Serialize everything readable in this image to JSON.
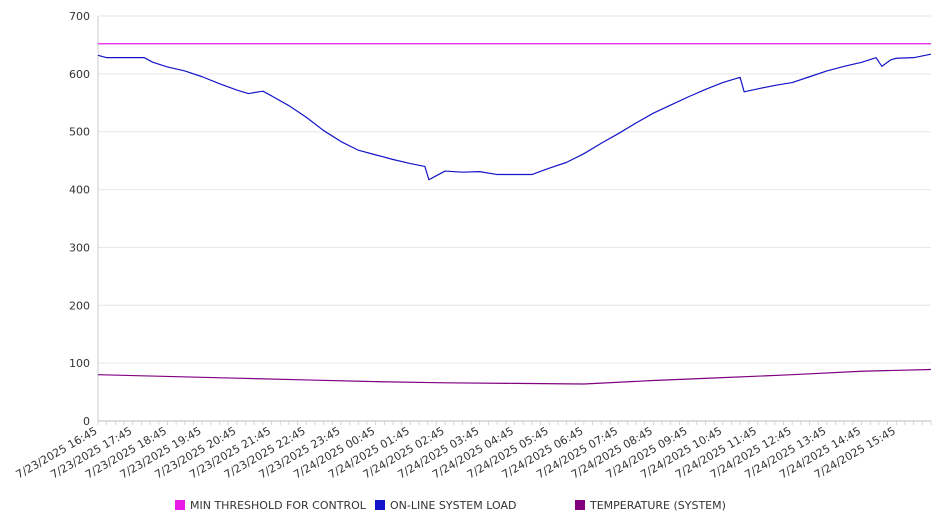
{
  "chart_data": {
    "type": "line",
    "ylim": [
      0,
      700
    ],
    "y_ticks": [
      0,
      100,
      200,
      300,
      400,
      500,
      600,
      700
    ],
    "grid": "horizontal",
    "legend_position": "bottom",
    "x_tick_labels": [
      "7/23/2025 16:45",
      "7/23/2025 17:45",
      "7/23/2025 18:45",
      "7/23/2025 19:45",
      "7/23/2025 20:45",
      "7/23/2025 21:45",
      "7/23/2025 22:45",
      "7/23/2025 23:45",
      "7/24/2025 00:45",
      "7/24/2025 01:45",
      "7/24/2025 02:45",
      "7/24/2025 03:45",
      "7/24/2025 04:45",
      "7/24/2025 05:45",
      "7/24/2025 06:45",
      "7/24/2025 07:45",
      "7/24/2025 08:45",
      "7/24/2025 09:45",
      "7/24/2025 10:45",
      "7/24/2025 11:45",
      "7/24/2025 12:45",
      "7/24/2025 13:45",
      "7/24/2025 14:45",
      "7/24/2025 15:45"
    ],
    "x_range": [
      "7/23/2025 16:45",
      "7/24/2025 16:45"
    ],
    "series": [
      {
        "name": "MIN THRESHOLD FOR CONTROL",
        "color": "#e81ae8",
        "points": [
          [
            "7/23/2025 16:45",
            652
          ],
          [
            "7/24/2025 16:45",
            652
          ]
        ]
      },
      {
        "name": "ON-LINE SYSTEM LOAD",
        "color": "#1414c8",
        "points": [
          [
            "7/23/2025 16:45",
            632
          ],
          [
            "7/23/2025 17:00",
            628
          ],
          [
            "7/23/2025 17:45",
            628
          ],
          [
            "7/23/2025 18:05",
            628
          ],
          [
            "7/23/2025 18:20",
            620
          ],
          [
            "7/23/2025 18:45",
            612
          ],
          [
            "7/23/2025 19:15",
            605
          ],
          [
            "7/23/2025 19:45",
            595
          ],
          [
            "7/23/2025 20:15",
            583
          ],
          [
            "7/23/2025 20:45",
            572
          ],
          [
            "7/23/2025 21:05",
            566
          ],
          [
            "7/23/2025 21:30",
            570
          ],
          [
            "7/23/2025 21:45",
            562
          ],
          [
            "7/23/2025 22:15",
            545
          ],
          [
            "7/23/2025 22:45",
            525
          ],
          [
            "7/23/2025 23:15",
            502
          ],
          [
            "7/23/2025 23:45",
            483
          ],
          [
            "7/24/2025 00:15",
            468
          ],
          [
            "7/24/2025 00:45",
            460
          ],
          [
            "7/24/2025 01:15",
            452
          ],
          [
            "7/24/2025 01:45",
            445
          ],
          [
            "7/24/2025 02:10",
            440
          ],
          [
            "7/24/2025 02:17",
            417
          ],
          [
            "7/24/2025 02:30",
            424
          ],
          [
            "7/24/2025 02:45",
            432
          ],
          [
            "7/24/2025 03:15",
            430
          ],
          [
            "7/24/2025 03:45",
            431
          ],
          [
            "7/24/2025 04:15",
            426
          ],
          [
            "7/24/2025 04:45",
            426
          ],
          [
            "7/24/2025 05:15",
            426
          ],
          [
            "7/24/2025 05:45",
            437
          ],
          [
            "7/24/2025 06:15",
            447
          ],
          [
            "7/24/2025 06:45",
            462
          ],
          [
            "7/24/2025 07:15",
            480
          ],
          [
            "7/24/2025 07:45",
            497
          ],
          [
            "7/24/2025 08:15",
            515
          ],
          [
            "7/24/2025 08:45",
            532
          ],
          [
            "7/24/2025 09:15",
            546
          ],
          [
            "7/24/2025 09:45",
            560
          ],
          [
            "7/24/2025 10:15",
            573
          ],
          [
            "7/24/2025 10:45",
            585
          ],
          [
            "7/24/2025 11:15",
            594
          ],
          [
            "7/24/2025 11:22",
            569
          ],
          [
            "7/24/2025 11:45",
            574
          ],
          [
            "7/24/2025 12:15",
            580
          ],
          [
            "7/24/2025 12:45",
            585
          ],
          [
            "7/24/2025 13:15",
            595
          ],
          [
            "7/24/2025 13:45",
            605
          ],
          [
            "7/24/2025 14:15",
            613
          ],
          [
            "7/24/2025 14:45",
            620
          ],
          [
            "7/24/2025 15:10",
            628
          ],
          [
            "7/24/2025 15:20",
            613
          ],
          [
            "7/24/2025 15:35",
            624
          ],
          [
            "7/24/2025 15:45",
            627
          ],
          [
            "7/24/2025 16:15",
            628
          ],
          [
            "7/24/2025 16:45",
            634
          ]
        ]
      },
      {
        "name": "TEMPERATURE (SYSTEM)",
        "color": "#800080",
        "points": [
          [
            "7/23/2025 16:45",
            80
          ],
          [
            "7/23/2025 18:45",
            77
          ],
          [
            "7/23/2025 20:45",
            74
          ],
          [
            "7/23/2025 22:45",
            71
          ],
          [
            "7/24/2025 00:45",
            68
          ],
          [
            "7/24/2025 02:45",
            66
          ],
          [
            "7/24/2025 04:45",
            65
          ],
          [
            "7/24/2025 06:45",
            64
          ],
          [
            "7/24/2025 08:45",
            70
          ],
          [
            "7/24/2025 10:45",
            75
          ],
          [
            "7/24/2025 12:45",
            80
          ],
          [
            "7/24/2025 14:45",
            86
          ],
          [
            "7/24/2025 16:45",
            89
          ]
        ]
      }
    ]
  }
}
